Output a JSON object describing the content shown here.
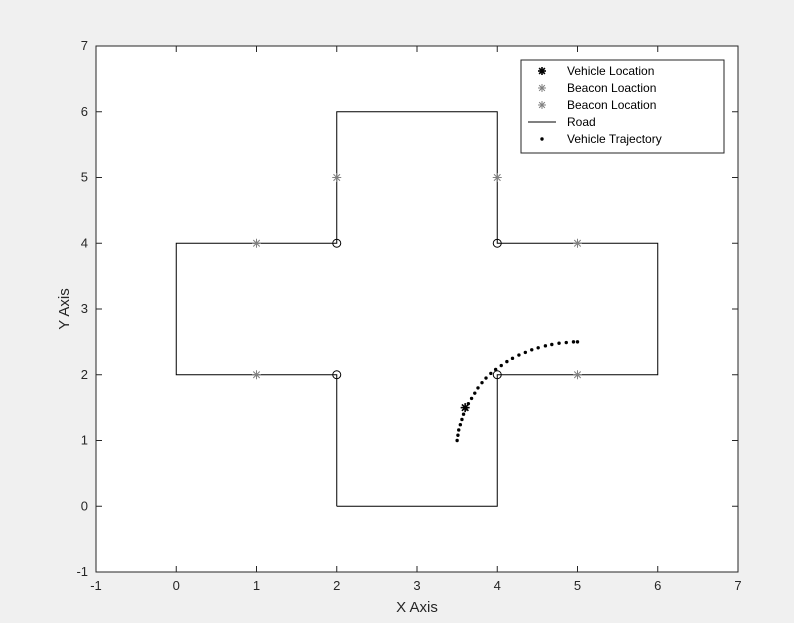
{
  "chart_data": {
    "type": "scatter",
    "title": "",
    "xlabel": "X Axis",
    "ylabel": "Y Axis",
    "xlim": [
      -1,
      7
    ],
    "ylim": [
      -1,
      7
    ],
    "xticks": [
      "-1",
      "0",
      "1",
      "2",
      "3",
      "4",
      "5",
      "6",
      "7"
    ],
    "yticks": [
      "-1",
      "0",
      "1",
      "2",
      "3",
      "4",
      "5",
      "6",
      "7"
    ],
    "grid": false,
    "legend_position": "top-right",
    "legend": [
      "Vehicle Location",
      "Beacon Loaction",
      "Beacon Location",
      "Road",
      "Vehicle Trajectory"
    ],
    "series": [
      {
        "name": "Vehicle Location",
        "marker": "asterisk",
        "color": "#000000",
        "points": [
          [
            3.6,
            1.5
          ]
        ]
      },
      {
        "name": "Beacon Loaction",
        "marker": "asterisk",
        "color": "#808080",
        "points": [
          [
            1,
            4
          ],
          [
            2,
            5
          ],
          [
            4,
            5
          ],
          [
            5,
            4
          ],
          [
            1,
            2
          ],
          [
            5,
            2
          ]
        ]
      },
      {
        "name": "Beacon Location",
        "marker": "circle",
        "color": "#000000",
        "points": [
          [
            2,
            4
          ],
          [
            4,
            4
          ],
          [
            2,
            2
          ],
          [
            4,
            2
          ]
        ]
      },
      {
        "name": "Road",
        "type": "line",
        "color": "#000000",
        "points": [
          [
            2,
            0
          ],
          [
            4,
            0
          ],
          [
            4,
            2
          ],
          [
            6,
            2
          ],
          [
            6,
            4
          ],
          [
            4,
            4
          ],
          [
            4,
            6
          ],
          [
            2,
            6
          ],
          [
            2,
            4
          ],
          [
            0,
            4
          ],
          [
            0,
            2
          ],
          [
            2,
            2
          ],
          [
            2,
            0
          ]
        ]
      },
      {
        "name": "Vehicle Trajectory",
        "marker": "dot",
        "color": "#000000",
        "points": [
          [
            3.5,
            1.0
          ],
          [
            3.51,
            1.08
          ],
          [
            3.52,
            1.16
          ],
          [
            3.54,
            1.24
          ],
          [
            3.56,
            1.32
          ],
          [
            3.58,
            1.4
          ],
          [
            3.61,
            1.48
          ],
          [
            3.64,
            1.56
          ],
          [
            3.68,
            1.64
          ],
          [
            3.72,
            1.72
          ],
          [
            3.76,
            1.8
          ],
          [
            3.81,
            1.88
          ],
          [
            3.86,
            1.95
          ],
          [
            3.92,
            2.02
          ],
          [
            3.98,
            2.08
          ],
          [
            4.05,
            2.14
          ],
          [
            4.12,
            2.2
          ],
          [
            4.19,
            2.25
          ],
          [
            4.27,
            2.3
          ],
          [
            4.35,
            2.34
          ],
          [
            4.43,
            2.38
          ],
          [
            4.51,
            2.41
          ],
          [
            4.6,
            2.44
          ],
          [
            4.68,
            2.46
          ],
          [
            4.77,
            2.48
          ],
          [
            4.86,
            2.49
          ],
          [
            4.95,
            2.5
          ],
          [
            5.0,
            2.5
          ]
        ]
      }
    ]
  }
}
